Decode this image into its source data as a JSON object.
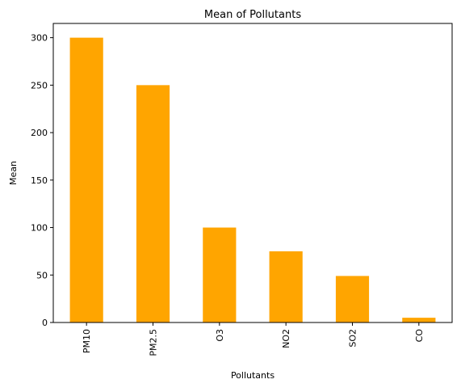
{
  "colors": {
    "bar": "#FFA500",
    "axis": "#000000",
    "background": "#ffffff"
  },
  "chart_data": {
    "type": "bar",
    "title": "Mean of Pollutants",
    "xlabel": "Pollutants",
    "ylabel": "Mean",
    "categories": [
      "PM10",
      "PM2.5",
      "O3",
      "NO2",
      "SO2",
      "CO"
    ],
    "values": [
      300,
      250,
      100,
      75,
      49,
      5
    ],
    "ylim": [
      0,
      315
    ],
    "yticks": [
      0,
      50,
      100,
      150,
      200,
      250,
      300
    ],
    "ytick_labels": [
      "0",
      "50",
      "100",
      "150",
      "200",
      "250",
      "300"
    ],
    "grid": false,
    "legend": "none",
    "bar_color": "#FFA500"
  }
}
